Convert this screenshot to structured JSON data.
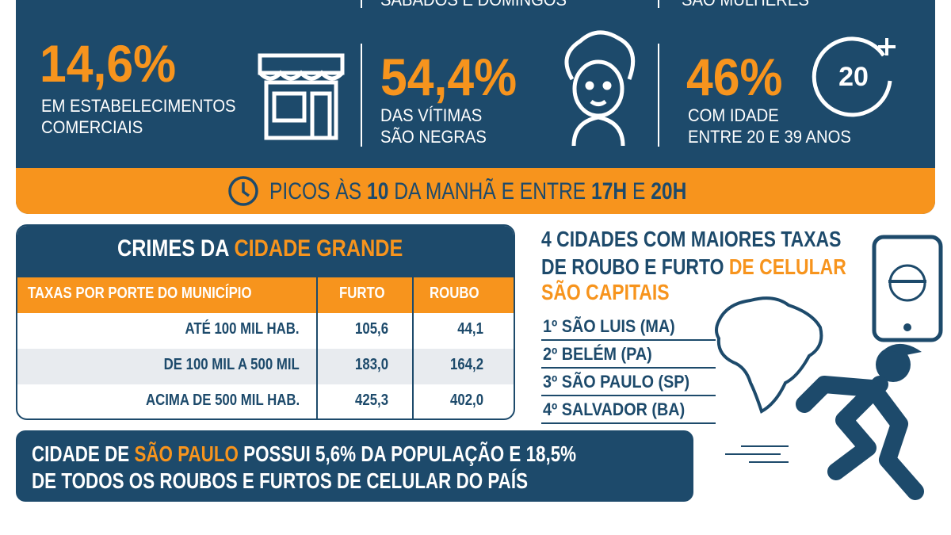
{
  "top_partial": {
    "center": "SÁBADOS E DOMINGOS",
    "right": "SÃO MULHERES"
  },
  "stats": [
    {
      "value": "14,6%",
      "label": [
        "EM ESTABELECIMENTOS",
        "COMERCIAIS"
      ]
    },
    {
      "value": "54,4%",
      "label": [
        "DAS VÍTIMAS",
        "SÃO NEGRAS"
      ]
    },
    {
      "value": "46%",
      "label": [
        "COM IDADE",
        "ENTRE 20 E 39 ANOS"
      ],
      "icon": "20"
    }
  ],
  "peak": [
    "PICOS ÀS ",
    "10",
    " DA MANHÃ E ENTRE ",
    "17H",
    " E ",
    "20H"
  ],
  "table": {
    "title": [
      "CRIMES DA ",
      "CIDADE GRANDE"
    ],
    "header": [
      "TAXAS POR PORTE DO MUNICÍPIO",
      "FURTO",
      "ROUBO"
    ],
    "rows": [
      [
        "ATÉ 100 MIL HAB.",
        "105,6",
        "44,1"
      ],
      [
        "DE 100 MIL A 500 MIL",
        "183,0",
        "164,2"
      ],
      [
        "ACIMA DE 500 MIL HAB.",
        "425,3",
        "402,0"
      ]
    ]
  },
  "cities": {
    "title": [
      "4 CIDADES COM MAIORES TAXAS",
      "DE ROUBO E FURTO ",
      "DE CELULAR",
      "SÃO CAPITAIS"
    ],
    "list": [
      "1º SÃO LUIS (MA)",
      "2º BELÉM (PA)",
      "3º SÃO PAULO (SP)",
      "4º SALVADOR (BA)"
    ]
  },
  "footer": [
    "CIDADE DE ",
    "SÃO PAULO",
    " POSSUI 5,6% DA POPULAÇÃO E 18,5%",
    "DE TODOS OS ROUBOS E FURTOS DE CELULAR DO PAÍS"
  ]
}
